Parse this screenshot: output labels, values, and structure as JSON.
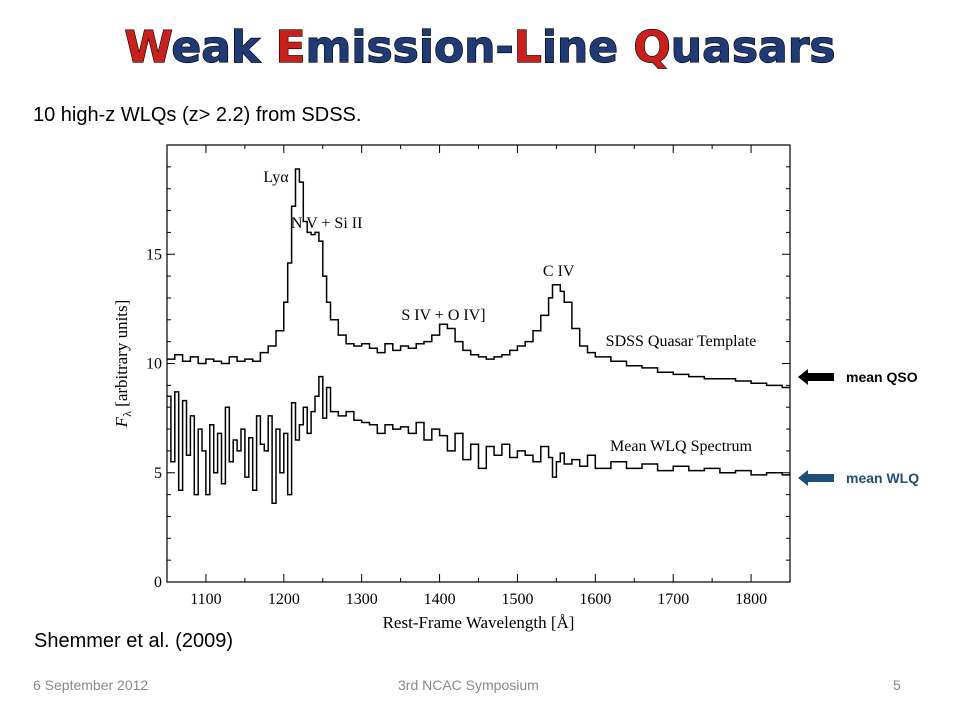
{
  "slide": {
    "title_parts": [
      {
        "text": "W",
        "color": "#c8201c"
      },
      {
        "text": "eak ",
        "color": "#1f3a75"
      },
      {
        "text": "E",
        "color": "#c8201c"
      },
      {
        "text": "mission-",
        "color": "#1f3a75"
      },
      {
        "text": "L",
        "color": "#c8201c"
      },
      {
        "text": "ine ",
        "color": "#1f3a75"
      },
      {
        "text": "Q",
        "color": "#c8201c"
      },
      {
        "text": "uasars",
        "color": "#1f3a75"
      }
    ],
    "subtitle": "10 high-z WLQs (z> 2.2) from SDSS.",
    "citation": "Shemmer et al. (2009)",
    "arrows": [
      {
        "label": "mean QSO",
        "color": "#000000"
      },
      {
        "label": "mean WLQ",
        "color": "#1f4e79"
      }
    ],
    "footer": {
      "date": "6 September 2012",
      "event": "3rd NCAC Symposium",
      "page": "5"
    }
  },
  "chart_data": {
    "type": "line",
    "title": "",
    "xlabel": "Rest-Frame Wavelength [Å]",
    "ylabel_main": "F",
    "ylabel_sub": "λ",
    "ylabel_rest": " [arbitrary units]",
    "xlim": [
      1050,
      1850
    ],
    "ylim": [
      0,
      20
    ],
    "xticks": [
      1100,
      1200,
      1300,
      1400,
      1500,
      1600,
      1700,
      1800
    ],
    "yticks": [
      0,
      5,
      10,
      15
    ],
    "grid": false,
    "legend": "none",
    "annotations": [
      {
        "x": 1190,
        "y": 18.3,
        "text": "Lyα"
      },
      {
        "x": 1255,
        "y": 16.2,
        "text": "N V + Si II"
      },
      {
        "x": 1405,
        "y": 12.0,
        "text": "S IV + O IV]"
      },
      {
        "x": 1553,
        "y": 14.0,
        "text": "C IV"
      },
      {
        "x": 1710,
        "y": 10.8,
        "text": "SDSS Quasar Template"
      },
      {
        "x": 1710,
        "y": 6.0,
        "text": "Mean WLQ Spectrum"
      }
    ],
    "series": [
      {
        "name": "SDSS Quasar Template",
        "x": [
          1050,
          1060,
          1070,
          1080,
          1090,
          1100,
          1110,
          1120,
          1130,
          1140,
          1150,
          1160,
          1170,
          1180,
          1190,
          1200,
          1205,
          1210,
          1215,
          1220,
          1225,
          1230,
          1235,
          1240,
          1245,
          1250,
          1255,
          1260,
          1270,
          1280,
          1290,
          1300,
          1310,
          1320,
          1330,
          1340,
          1350,
          1360,
          1370,
          1380,
          1390,
          1400,
          1410,
          1420,
          1430,
          1440,
          1450,
          1460,
          1470,
          1480,
          1490,
          1500,
          1510,
          1520,
          1530,
          1540,
          1545,
          1550,
          1555,
          1560,
          1570,
          1580,
          1590,
          1600,
          1620,
          1640,
          1660,
          1680,
          1700,
          1720,
          1740,
          1760,
          1780,
          1800,
          1820,
          1840,
          1850
        ],
        "y": [
          10.2,
          10.4,
          10.1,
          10.3,
          10.0,
          10.2,
          10.1,
          10.0,
          10.3,
          10.1,
          10.2,
          10.1,
          10.5,
          10.8,
          11.5,
          12.8,
          14.6,
          17.2,
          18.9,
          18.3,
          16.5,
          16.0,
          15.9,
          16.0,
          15.6,
          14.0,
          12.8,
          12.0,
          11.3,
          10.9,
          10.8,
          10.9,
          10.7,
          10.5,
          10.9,
          10.6,
          10.8,
          10.7,
          10.9,
          11.0,
          11.3,
          11.8,
          11.6,
          11.0,
          10.6,
          10.4,
          10.3,
          10.2,
          10.3,
          10.4,
          10.6,
          10.8,
          11.0,
          11.5,
          12.2,
          13.0,
          13.6,
          13.6,
          13.3,
          12.8,
          11.6,
          10.8,
          10.5,
          10.3,
          10.1,
          9.9,
          9.8,
          9.6,
          9.5,
          9.4,
          9.3,
          9.3,
          9.2,
          9.1,
          9.0,
          8.9,
          9.0
        ]
      },
      {
        "name": "Mean WLQ Spectrum",
        "x": [
          1050,
          1055,
          1060,
          1065,
          1070,
          1075,
          1080,
          1085,
          1090,
          1095,
          1100,
          1105,
          1110,
          1115,
          1120,
          1125,
          1130,
          1135,
          1140,
          1145,
          1150,
          1155,
          1160,
          1165,
          1170,
          1175,
          1180,
          1185,
          1190,
          1195,
          1200,
          1205,
          1210,
          1215,
          1220,
          1225,
          1230,
          1235,
          1240,
          1245,
          1250,
          1255,
          1260,
          1270,
          1280,
          1290,
          1300,
          1310,
          1320,
          1330,
          1340,
          1350,
          1360,
          1370,
          1380,
          1390,
          1400,
          1410,
          1420,
          1430,
          1440,
          1450,
          1460,
          1470,
          1480,
          1490,
          1500,
          1510,
          1520,
          1530,
          1540,
          1545,
          1550,
          1555,
          1560,
          1570,
          1580,
          1590,
          1600,
          1620,
          1640,
          1660,
          1680,
          1700,
          1720,
          1740,
          1760,
          1780,
          1800,
          1820,
          1840,
          1850
        ],
        "y": [
          8.5,
          5.5,
          8.7,
          4.2,
          8.3,
          5.8,
          7.6,
          4.0,
          7.0,
          6.0,
          4.0,
          7.2,
          5.0,
          6.8,
          4.5,
          8.0,
          5.5,
          6.5,
          6.0,
          7.0,
          4.8,
          6.6,
          4.2,
          7.6,
          6.3,
          6.0,
          7.6,
          3.6,
          7.0,
          5.0,
          6.8,
          4.0,
          8.2,
          6.5,
          7.2,
          8.0,
          6.8,
          7.8,
          8.5,
          9.4,
          7.5,
          8.9,
          7.8,
          7.6,
          7.8,
          7.4,
          7.3,
          7.2,
          6.8,
          7.2,
          7.0,
          7.1,
          6.8,
          7.3,
          6.5,
          7.0,
          6.7,
          6.0,
          6.8,
          5.6,
          6.3,
          5.2,
          6.2,
          5.8,
          6.3,
          5.7,
          6.0,
          5.8,
          5.5,
          6.2,
          5.7,
          4.8,
          5.5,
          5.9,
          5.4,
          5.6,
          5.3,
          5.8,
          5.2,
          5.5,
          5.2,
          5.4,
          5.1,
          5.3,
          5.1,
          5.2,
          5.0,
          5.1,
          4.9,
          5.0,
          4.9,
          5.0
        ]
      }
    ]
  }
}
